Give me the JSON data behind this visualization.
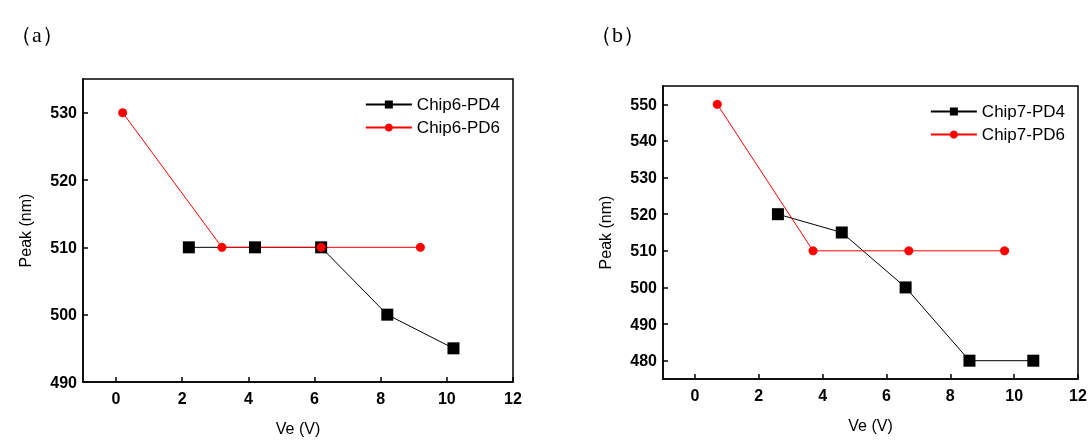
{
  "chart_data": [
    {
      "type": "line",
      "title": "（a）",
      "xlabel": "Ve (V)",
      "ylabel": "Peak (nm)",
      "xlim": [
        -1,
        12
      ],
      "xticks": [
        0,
        2,
        4,
        6,
        8,
        10,
        12
      ],
      "ylim": [
        490,
        535
      ],
      "yticks": [
        490,
        500,
        510,
        520,
        530
      ],
      "legend": "top right",
      "grid": false,
      "series": [
        {
          "name": "Chip6-PD4",
          "color": "#000000",
          "marker": "square",
          "x": [
            2.2,
            4.2,
            6.2,
            8.2,
            10.2
          ],
          "values": [
            510,
            510,
            510,
            500,
            495
          ]
        },
        {
          "name": "Chip6-PD6",
          "color": "#ff0000",
          "marker": "circle",
          "x": [
            0.2,
            3.2,
            6.2,
            9.2
          ],
          "values": [
            530,
            510,
            510,
            510
          ]
        }
      ]
    },
    {
      "type": "line",
      "title": "（b）",
      "xlabel": "Ve (V)",
      "ylabel": "Peak (nm)",
      "xlim": [
        -1,
        12
      ],
      "xticks": [
        0,
        2,
        4,
        6,
        8,
        10,
        12
      ],
      "ylim": [
        475,
        555
      ],
      "yticks": [
        480,
        490,
        500,
        510,
        520,
        530,
        540,
        550
      ],
      "legend": "top right",
      "grid": false,
      "series": [
        {
          "name": "Chip7-PD4",
          "color": "#000000",
          "marker": "square",
          "x": [
            2.6,
            4.6,
            6.6,
            8.6,
            10.6
          ],
          "values": [
            520,
            515,
            500,
            480,
            480
          ]
        },
        {
          "name": "Chip7-PD6",
          "color": "#ff0000",
          "marker": "circle",
          "x": [
            0.7,
            3.7,
            6.7,
            9.7
          ],
          "values": [
            550,
            510,
            510,
            510
          ]
        }
      ]
    }
  ]
}
